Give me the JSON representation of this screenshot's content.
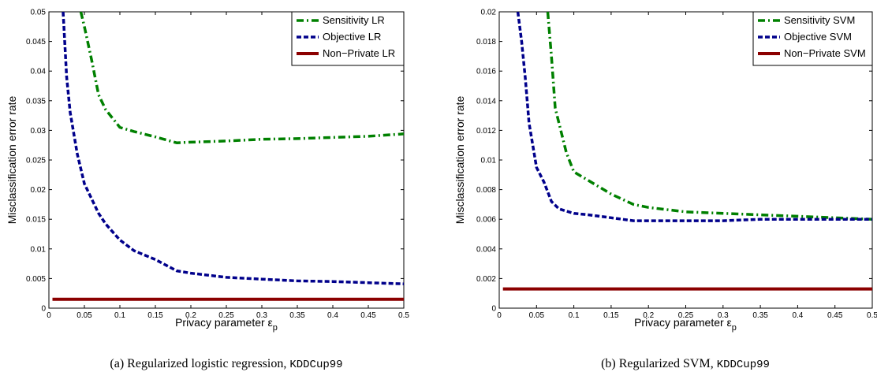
{
  "colors": {
    "sensitivity": "#008000",
    "objective": "#00008b",
    "nonprivate": "#8b0000"
  },
  "chart_data": [
    {
      "type": "line",
      "xlabel": "Privacy parameter ε",
      "xlabel_sub": "p",
      "ylabel": "Misclassification error rate",
      "xlim": [
        0,
        0.5
      ],
      "ylim": [
        0,
        0.05
      ],
      "xticks": [
        "0",
        "0.05",
        "0.1",
        "0.15",
        "0.2",
        "0.25",
        "0.3",
        "0.35",
        "0.4",
        "0.45",
        "0.5"
      ],
      "yticks": [
        "0",
        "0.005",
        "0.01",
        "0.015",
        "0.02",
        "0.025",
        "0.03",
        "0.035",
        "0.04",
        "0.045",
        "0.05"
      ],
      "legend_position": "top-right",
      "caption_prefix": "(a)  Regularized logistic regression, ",
      "caption_dataset": "KDDCup99",
      "series": [
        {
          "name": "Sensitivity LR",
          "style": "dashdot",
          "color_key": "sensitivity",
          "x": [
            0.045,
            0.05,
            0.06,
            0.07,
            0.08,
            0.1,
            0.12,
            0.15,
            0.18,
            0.2,
            0.25,
            0.3,
            0.35,
            0.4,
            0.45,
            0.5
          ],
          "y": [
            0.05,
            0.0475,
            0.042,
            0.036,
            0.0335,
            0.0305,
            0.0298,
            0.0289,
            0.0279,
            0.028,
            0.0282,
            0.0285,
            0.0286,
            0.0288,
            0.029,
            0.0294
          ]
        },
        {
          "name": "Objective LR",
          "style": "dotted",
          "color_key": "objective",
          "x": [
            0.02,
            0.025,
            0.03,
            0.04,
            0.05,
            0.06,
            0.07,
            0.08,
            0.1,
            0.12,
            0.15,
            0.18,
            0.2,
            0.25,
            0.3,
            0.35,
            0.4,
            0.45,
            0.5
          ],
          "y": [
            0.05,
            0.039,
            0.033,
            0.026,
            0.021,
            0.0185,
            0.016,
            0.0142,
            0.0115,
            0.0097,
            0.0082,
            0.0063,
            0.0059,
            0.0052,
            0.0049,
            0.0046,
            0.0045,
            0.0043,
            0.0041
          ]
        },
        {
          "name": "Non−Private LR",
          "style": "solid",
          "color_key": "nonprivate",
          "x": [
            0.005,
            0.5
          ],
          "y": [
            0.0015,
            0.0015
          ]
        }
      ]
    },
    {
      "type": "line",
      "xlabel": "Privacy parameter ε",
      "xlabel_sub": "p",
      "ylabel": "Misclassification error rate",
      "xlim": [
        0,
        0.5
      ],
      "ylim": [
        0,
        0.02
      ],
      "xticks": [
        "0",
        "0.05",
        "0.1",
        "0.15",
        "0.2",
        "0.25",
        "0.3",
        "0.35",
        "0.4",
        "0.45",
        "0.5"
      ],
      "yticks": [
        "0",
        "0.002",
        "0.004",
        "0.006",
        "0.008",
        "0.01",
        "0.012",
        "0.014",
        "0.016",
        "0.018",
        "0.02"
      ],
      "legend_position": "top-right",
      "caption_prefix": "(b)  Regularized SVM, ",
      "caption_dataset": "KDDCup99",
      "series": [
        {
          "name": "Sensitivity SVM",
          "style": "dashdot",
          "color_key": "sensitivity",
          "x": [
            0.065,
            0.07,
            0.075,
            0.08,
            0.09,
            0.1,
            0.12,
            0.15,
            0.18,
            0.2,
            0.25,
            0.3,
            0.35,
            0.4,
            0.45,
            0.5
          ],
          "y": [
            0.02,
            0.017,
            0.0135,
            0.0125,
            0.0105,
            0.0092,
            0.0086,
            0.0077,
            0.007,
            0.0068,
            0.0065,
            0.0064,
            0.0063,
            0.0062,
            0.0061,
            0.006
          ]
        },
        {
          "name": "Objective SVM",
          "style": "dotted",
          "color_key": "objective",
          "x": [
            0.025,
            0.03,
            0.035,
            0.04,
            0.05,
            0.06,
            0.07,
            0.08,
            0.1,
            0.12,
            0.15,
            0.18,
            0.2,
            0.25,
            0.3,
            0.35,
            0.4,
            0.45,
            0.5
          ],
          "y": [
            0.02,
            0.018,
            0.0155,
            0.0125,
            0.0095,
            0.0085,
            0.0072,
            0.0067,
            0.0064,
            0.0063,
            0.0061,
            0.0059,
            0.0059,
            0.0059,
            0.0059,
            0.006,
            0.006,
            0.006,
            0.006
          ]
        },
        {
          "name": "Non−Private SVM",
          "style": "solid",
          "color_key": "nonprivate",
          "x": [
            0.005,
            0.5
          ],
          "y": [
            0.0013,
            0.0013
          ]
        }
      ]
    }
  ]
}
